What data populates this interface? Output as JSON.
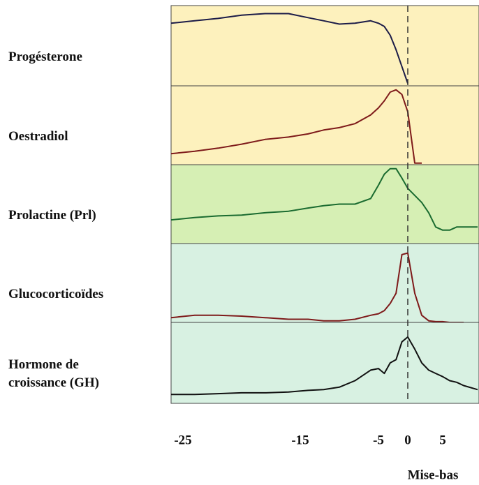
{
  "chart_data": {
    "type": "line",
    "xlabel": "Mise-bas",
    "x": [
      -26,
      -24,
      -22,
      -20,
      -18,
      -16,
      -14,
      -12,
      -10,
      -8,
      -6,
      -5,
      -4,
      -3,
      -2,
      -1,
      0,
      1,
      2,
      3,
      4,
      5,
      6,
      7,
      8,
      10
    ],
    "xlim": [
      -26,
      10.2
    ],
    "xticks": [
      -25,
      -15,
      -5,
      0,
      5
    ],
    "ylim": [
      0,
      100
    ],
    "marker_x": 0,
    "series": [
      {
        "name": "Progésterone",
        "color": "#1c1c48",
        "panel_color": "#fdf1bd",
        "values": [
          78,
          81,
          84,
          88,
          90,
          90,
          85,
          81,
          77,
          78,
          81,
          78,
          74,
          63,
          45,
          24,
          3,
          null,
          null,
          null,
          null,
          null,
          null,
          null,
          null,
          null
        ]
      },
      {
        "name": "Oestradiol",
        "color": "#7e1a1a",
        "panel_color": "#fdf1bd",
        "values": [
          14,
          17,
          21,
          26,
          32,
          35,
          39,
          44,
          47,
          52,
          63,
          72,
          81,
          92,
          95,
          89,
          67,
          2,
          2,
          null,
          null,
          null,
          null,
          null,
          null,
          null
        ]
      },
      {
        "name": "Prolactine (Prl)",
        "color": "#1a6b30",
        "panel_color": "#d6efb4",
        "values": [
          30,
          33,
          35,
          36,
          39,
          41,
          45,
          48,
          50,
          50,
          57,
          74,
          88,
          95,
          95,
          83,
          70,
          61,
          52,
          39,
          21,
          17,
          17,
          21,
          21,
          21
        ]
      },
      {
        "name": "Glucocorticoïdes",
        "color": "#7e1a1a",
        "panel_color": "#d8f1e2",
        "values": [
          6,
          9,
          9,
          8,
          6,
          4,
          4,
          2,
          2,
          4,
          9,
          11,
          15,
          24,
          37,
          86,
          88,
          37,
          9,
          2,
          1,
          1,
          0,
          0,
          0,
          null
        ]
      },
      {
        "name": "Hormone de\ncroissance (GH)",
        "color": "#111111",
        "panel_color": "#d8f1e2",
        "values": [
          11,
          11,
          12,
          13,
          13,
          14,
          16,
          17,
          20,
          28,
          41,
          43,
          37,
          50,
          54,
          76,
          82,
          67,
          50,
          41,
          37,
          33,
          28,
          26,
          22,
          17
        ]
      }
    ]
  }
}
